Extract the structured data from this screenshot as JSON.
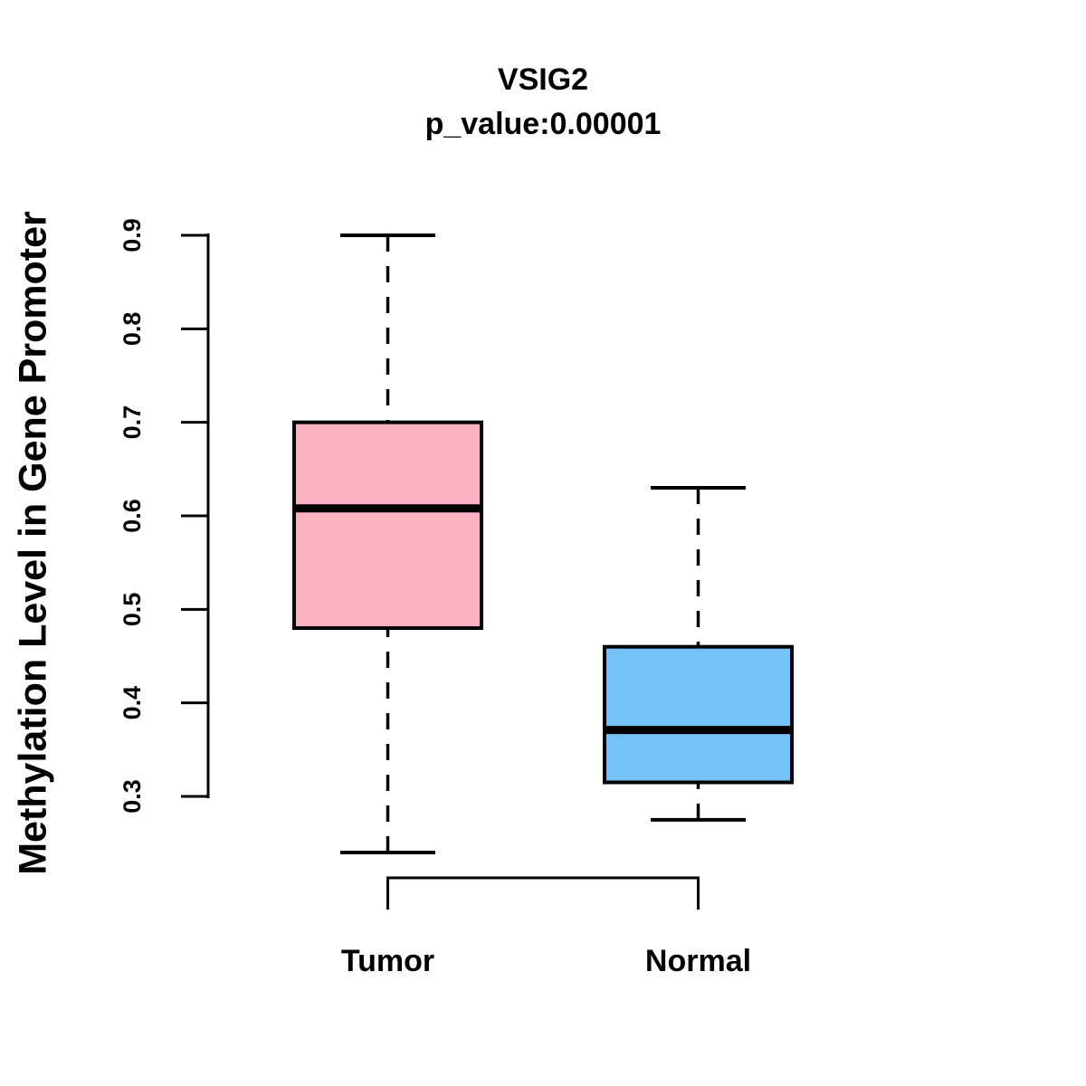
{
  "chart_data": {
    "type": "box",
    "title": "VSIG2",
    "subtitle": "p_value:0.00001",
    "ylabel": "Methylation Level in Gene Promoter",
    "xlabel": "",
    "ylim": [
      0.3,
      0.9
    ],
    "yticks": [
      0.3,
      0.4,
      0.5,
      0.6,
      0.7,
      0.8,
      0.9
    ],
    "categories": [
      "Tumor",
      "Normal"
    ],
    "series": [
      {
        "name": "Tumor",
        "min": 0.24,
        "q1": 0.48,
        "median": 0.608,
        "q3": 0.7,
        "max": 0.9,
        "color": "#FCB1C3"
      },
      {
        "name": "Normal",
        "min": 0.275,
        "q1": 0.315,
        "median": 0.371,
        "q3": 0.46,
        "max": 0.63,
        "color": "#76C1F8"
      }
    ],
    "colors": {
      "box_border": "#000000",
      "median_line": "#000000",
      "axis": "#000000",
      "text": "#000000",
      "background": "#FFFFFF"
    },
    "legend": "none",
    "grid": false,
    "whisker_style": "dashed"
  }
}
